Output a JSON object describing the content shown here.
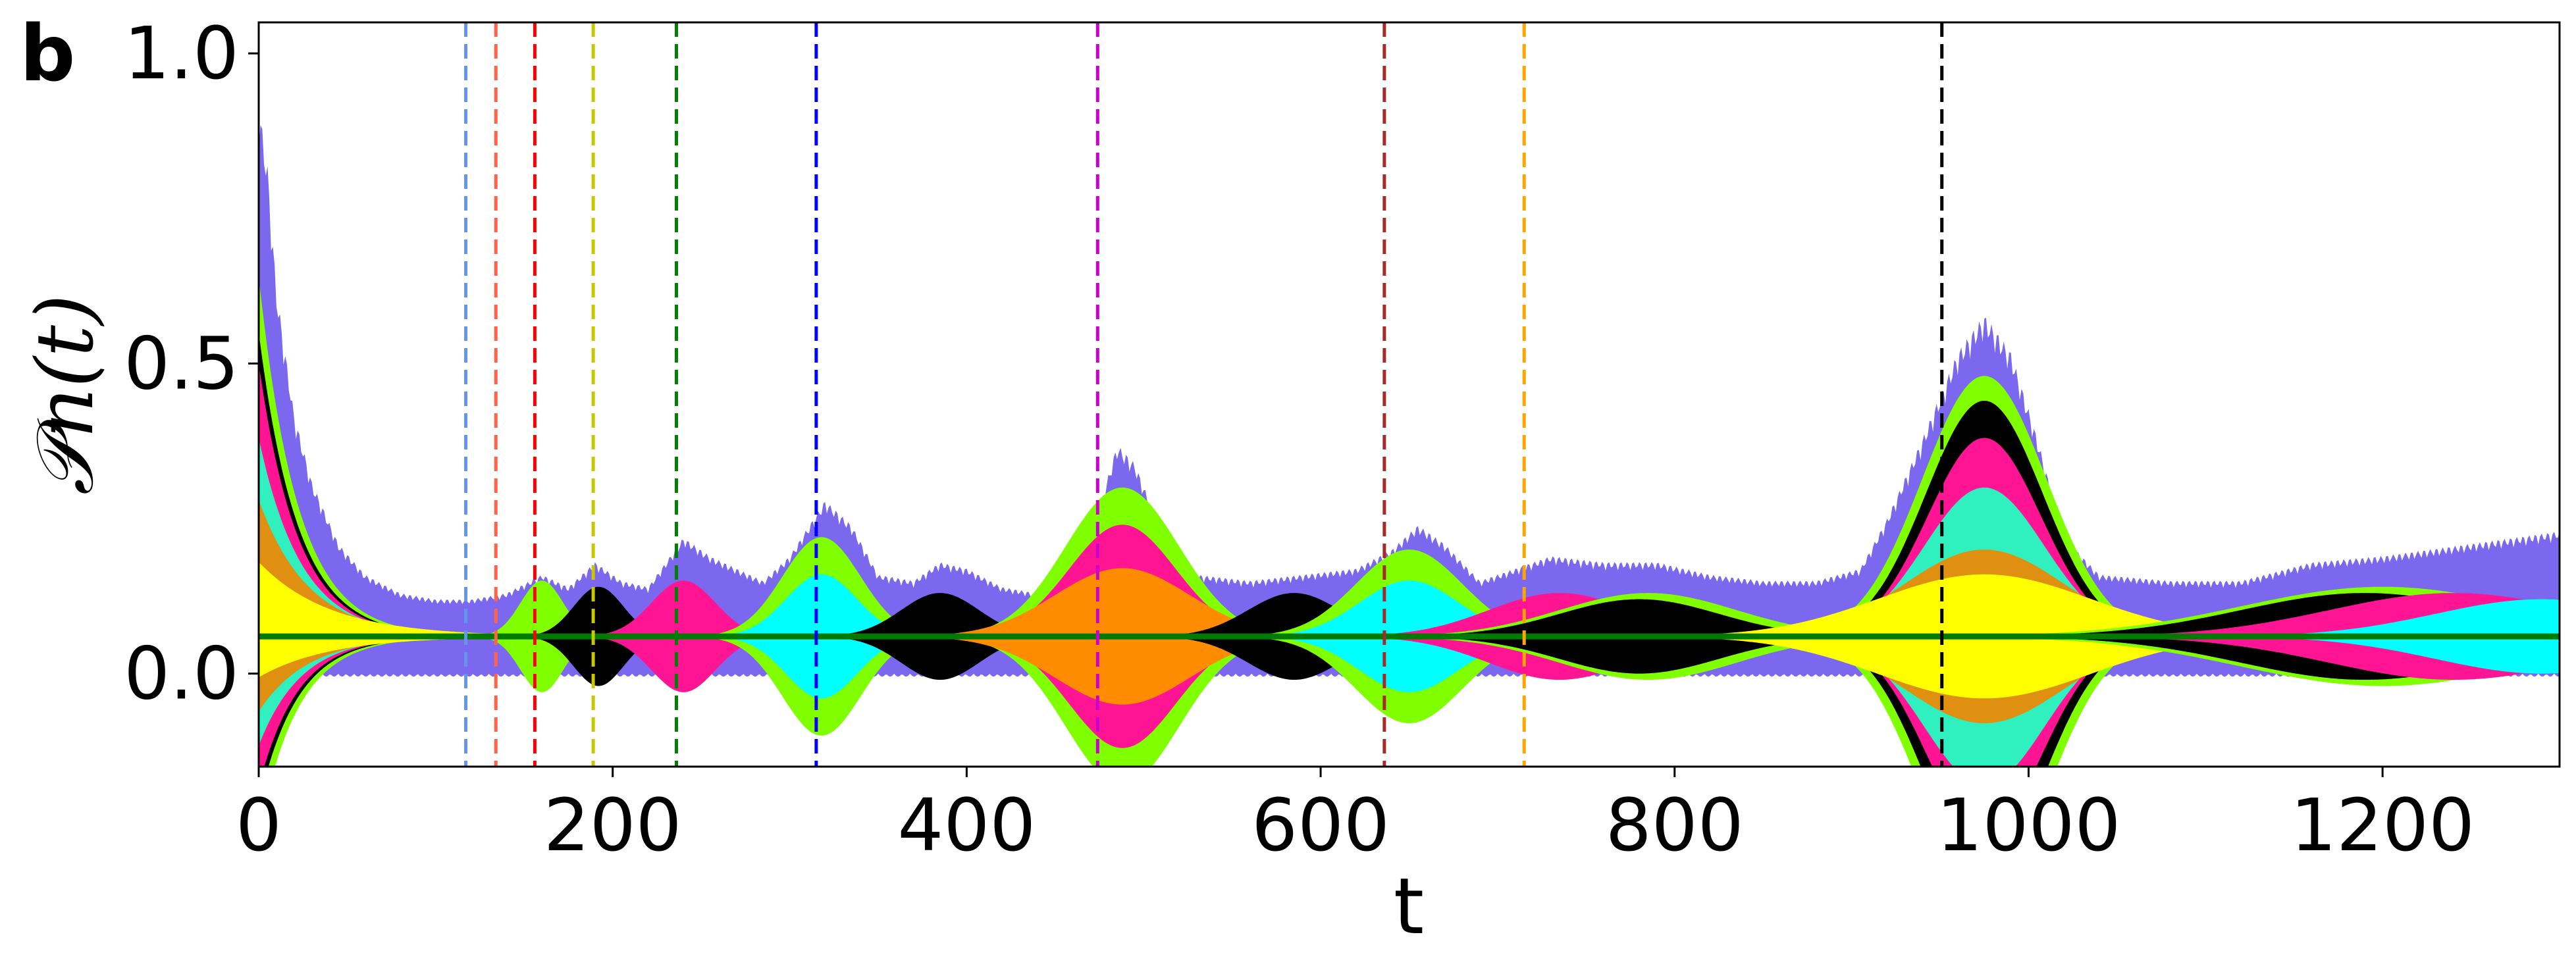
{
  "panel_label": "b",
  "chart_data": {
    "type": "area",
    "xlabel": "t",
    "ylabel": "𝒫n(t)",
    "xlim": [
      0,
      1300
    ],
    "ylim": [
      -0.15,
      1.05
    ],
    "xticks": [
      0,
      200,
      400,
      600,
      800,
      1000,
      1200
    ],
    "yticks": [
      0.0,
      0.5,
      1.0
    ],
    "ytick_labels": [
      "0.0",
      "0.5",
      "1.0"
    ],
    "grid": false,
    "baseline": {
      "y": 0.06,
      "color": "#007a00"
    },
    "background_envelope": {
      "color": "#7b68ee",
      "upper": [
        [
          0,
          0.92
        ],
        [
          5,
          0.82
        ],
        [
          10,
          0.62
        ],
        [
          20,
          0.42
        ],
        [
          30,
          0.31
        ],
        [
          45,
          0.21
        ],
        [
          60,
          0.16
        ],
        [
          80,
          0.13
        ],
        [
          100,
          0.12
        ],
        [
          120,
          0.12
        ],
        [
          140,
          0.13
        ],
        [
          160,
          0.16
        ],
        [
          175,
          0.14
        ],
        [
          190,
          0.18
        ],
        [
          205,
          0.15
        ],
        [
          220,
          0.14
        ],
        [
          240,
          0.22
        ],
        [
          255,
          0.19
        ],
        [
          270,
          0.17
        ],
        [
          285,
          0.15
        ],
        [
          300,
          0.19
        ],
        [
          320,
          0.28
        ],
        [
          335,
          0.24
        ],
        [
          350,
          0.16
        ],
        [
          370,
          0.15
        ],
        [
          385,
          0.18
        ],
        [
          400,
          0.17
        ],
        [
          420,
          0.14
        ],
        [
          440,
          0.13
        ],
        [
          460,
          0.15
        ],
        [
          475,
          0.27
        ],
        [
          485,
          0.37
        ],
        [
          495,
          0.34
        ],
        [
          510,
          0.23
        ],
        [
          530,
          0.16
        ],
        [
          560,
          0.15
        ],
        [
          590,
          0.16
        ],
        [
          620,
          0.17
        ],
        [
          640,
          0.2
        ],
        [
          655,
          0.24
        ],
        [
          670,
          0.21
        ],
        [
          690,
          0.15
        ],
        [
          710,
          0.17
        ],
        [
          730,
          0.19
        ],
        [
          760,
          0.18
        ],
        [
          790,
          0.18
        ],
        [
          820,
          0.16
        ],
        [
          850,
          0.15
        ],
        [
          880,
          0.15
        ],
        [
          905,
          0.17
        ],
        [
          920,
          0.25
        ],
        [
          940,
          0.38
        ],
        [
          960,
          0.52
        ],
        [
          975,
          0.58
        ],
        [
          990,
          0.52
        ],
        [
          1005,
          0.38
        ],
        [
          1020,
          0.22
        ],
        [
          1040,
          0.16
        ],
        [
          1080,
          0.15
        ],
        [
          1120,
          0.15
        ],
        [
          1160,
          0.18
        ],
        [
          1200,
          0.19
        ],
        [
          1250,
          0.21
        ],
        [
          1300,
          0.23
        ]
      ],
      "lower": [
        [
          0,
          0.0
        ],
        [
          1300,
          0.0
        ]
      ]
    },
    "initial_decay": [
      {
        "color": "#7fff00",
        "peak": 0.64,
        "tau": 22
      },
      {
        "color": "#000000",
        "peak": 0.55,
        "tau": 22
      },
      {
        "color": "#ff1493",
        "peak": 0.5,
        "tau": 22
      },
      {
        "color": "#30f0c0",
        "peak": 0.38,
        "tau": 24
      },
      {
        "color": "#e09010",
        "peak": 0.28,
        "tau": 28
      },
      {
        "color": "#ffff00",
        "peak": 0.18,
        "tau": 40
      }
    ],
    "wave_packets": [
      {
        "center": 160,
        "width": 12,
        "amplitude": 0.09,
        "color": "#7fff00"
      },
      {
        "center": 192,
        "width": 14,
        "amplitude": 0.08,
        "color": "#000000"
      },
      {
        "center": 240,
        "width": 18,
        "amplitude": 0.09,
        "color": "#ff1493"
      },
      {
        "center": 318,
        "width": 22,
        "amplitude": 0.16,
        "color": "#7fff00"
      },
      {
        "center": 318,
        "width": 20,
        "amplitude": 0.1,
        "color": "#00ffff"
      },
      {
        "center": 385,
        "width": 22,
        "amplitude": 0.07,
        "color": "#000000"
      },
      {
        "center": 488,
        "width": 32,
        "amplitude": 0.24,
        "color": "#7fff00"
      },
      {
        "center": 488,
        "width": 30,
        "amplitude": 0.18,
        "color": "#ff1493"
      },
      {
        "center": 488,
        "width": 38,
        "amplitude": 0.11,
        "color": "#ff8c00"
      },
      {
        "center": 585,
        "width": 26,
        "amplitude": 0.07,
        "color": "#000000"
      },
      {
        "center": 650,
        "width": 30,
        "amplitude": 0.14,
        "color": "#7fff00"
      },
      {
        "center": 650,
        "width": 28,
        "amplitude": 0.09,
        "color": "#00ffff"
      },
      {
        "center": 735,
        "width": 40,
        "amplitude": 0.07,
        "color": "#ff1493"
      },
      {
        "center": 785,
        "width": 50,
        "amplitude": 0.07,
        "color": "#7fff00"
      },
      {
        "center": 780,
        "width": 45,
        "amplitude": 0.06,
        "color": "#000000"
      },
      {
        "center": 975,
        "width": 35,
        "amplitude": 0.42,
        "color": "#7fff00"
      },
      {
        "center": 975,
        "width": 33,
        "amplitude": 0.38,
        "color": "#000000"
      },
      {
        "center": 975,
        "width": 32,
        "amplitude": 0.32,
        "color": "#ff1493"
      },
      {
        "center": 975,
        "width": 34,
        "amplitude": 0.24,
        "color": "#30f0c0"
      },
      {
        "center": 975,
        "width": 45,
        "amplitude": 0.14,
        "color": "#e09010"
      },
      {
        "center": 975,
        "width": 60,
        "amplitude": 0.1,
        "color": "#ffff00"
      },
      {
        "center": 1200,
        "width": 80,
        "amplitude": 0.08,
        "color": "#7fff00"
      },
      {
        "center": 1190,
        "width": 70,
        "amplitude": 0.07,
        "color": "#000000"
      },
      {
        "center": 1240,
        "width": 70,
        "amplitude": 0.07,
        "color": "#ff1493"
      },
      {
        "center": 1290,
        "width": 60,
        "amplitude": 0.06,
        "color": "#00ffff"
      }
    ],
    "vertical_lines": [
      {
        "x": 117,
        "color": "#6495ed"
      },
      {
        "x": 134,
        "color": "#ff6347"
      },
      {
        "x": 156,
        "color": "#ff0000"
      },
      {
        "x": 189,
        "color": "#c8c800"
      },
      {
        "x": 236,
        "color": "#008000"
      },
      {
        "x": 315,
        "color": "#0000ff"
      },
      {
        "x": 474,
        "color": "#cc00cc"
      },
      {
        "x": 636,
        "color": "#a52a2a"
      },
      {
        "x": 715,
        "color": "#ffa500"
      },
      {
        "x": 951,
        "color": "#000000"
      }
    ]
  }
}
